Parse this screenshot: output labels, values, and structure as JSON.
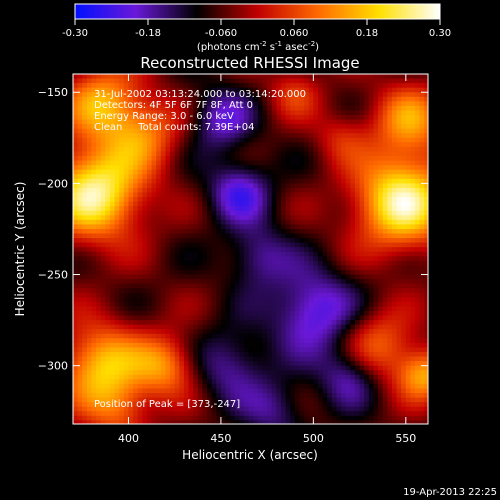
{
  "chart_data": {
    "type": "heatmap",
    "title": "Reconstructed RHESSI Image",
    "xlabel": "Heliocentric X (arcsec)",
    "ylabel": "Heliocentric Y (arcsec)",
    "xlim": [
      370,
      562
    ],
    "ylim": [
      -332,
      -140
    ],
    "x_ticks": [
      400,
      450,
      500,
      550
    ],
    "y_ticks": [
      -150,
      -200,
      -250,
      -300
    ],
    "colorbar": {
      "range": [
        -0.3,
        0.3
      ],
      "ticks": [
        "-0.30",
        "-0.18",
        "-0.060",
        "0.060",
        "0.18",
        "0.30"
      ],
      "units_prefix": "(photons cm",
      "units_sup1": "-2",
      "units_mid": " s",
      "units_sup2": "-1",
      "units_mid2": " asec",
      "units_sup3": "-2",
      "units_suffix": ")",
      "colors": [
        "#0010ff",
        "#6a18d8",
        "#000000",
        "#c00000",
        "#ff6a00",
        "#ffe000",
        "#ffffff"
      ]
    },
    "annotations": [
      "31-Jul-2002 03:13:24.000 to 03:14:20.000",
      "Detectors: 4F 5F 6F 7F 8F, Att 0",
      "Energy Range: 3.0 - 6.0 keV",
      "Clean     Total counts: 7.39E+04"
    ],
    "peak_label": "Position of Peak = [373,-247]",
    "peak": [
      373,
      -247
    ],
    "blobs": [
      {
        "x": 382,
        "y": -205,
        "v": 0.32,
        "s": 18
      },
      {
        "x": 385,
        "y": -155,
        "v": 0.2,
        "s": 14
      },
      {
        "x": 408,
        "y": -172,
        "v": 0.16,
        "s": 14
      },
      {
        "x": 385,
        "y": -300,
        "v": 0.24,
        "s": 16
      },
      {
        "x": 420,
        "y": -300,
        "v": 0.18,
        "s": 12
      },
      {
        "x": 395,
        "y": -325,
        "v": 0.12,
        "s": 12
      },
      {
        "x": 548,
        "y": -210,
        "v": 0.32,
        "s": 18
      },
      {
        "x": 552,
        "y": -165,
        "v": 0.18,
        "s": 14
      },
      {
        "x": 535,
        "y": -290,
        "v": 0.16,
        "s": 14
      },
      {
        "x": 560,
        "y": -305,
        "v": 0.2,
        "s": 10
      },
      {
        "x": 490,
        "y": -150,
        "v": 0.1,
        "s": 10
      },
      {
        "x": 515,
        "y": -175,
        "v": 0.08,
        "s": 10
      },
      {
        "x": 460,
        "y": -205,
        "v": -0.16,
        "s": 12
      },
      {
        "x": 450,
        "y": -165,
        "v": -0.14,
        "s": 12
      },
      {
        "x": 500,
        "y": -270,
        "v": -0.18,
        "s": 16
      },
      {
        "x": 470,
        "y": -240,
        "v": -0.12,
        "s": 12
      },
      {
        "x": 455,
        "y": -300,
        "v": -0.12,
        "s": 14
      },
      {
        "x": 520,
        "y": -305,
        "v": -0.14,
        "s": 12
      },
      {
        "x": 480,
        "y": -325,
        "v": -0.1,
        "s": 12
      }
    ]
  },
  "footer": {
    "date": "19-Apr-2013 22:25"
  }
}
